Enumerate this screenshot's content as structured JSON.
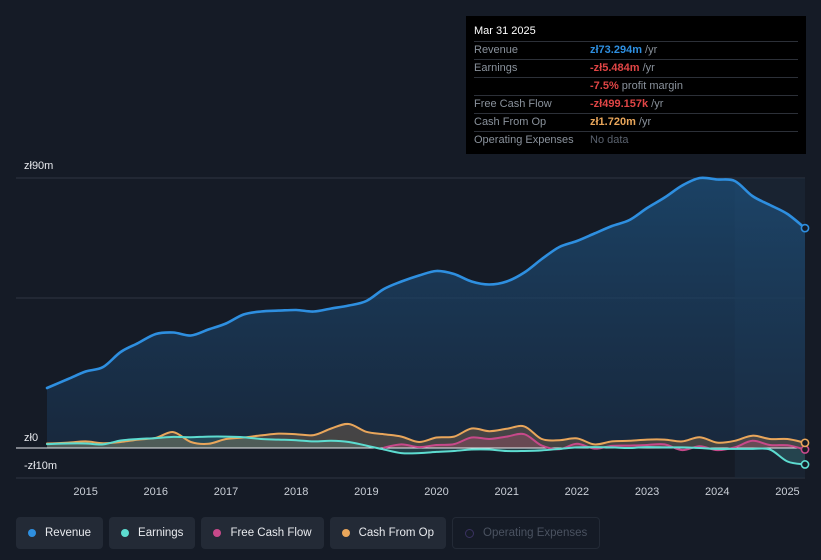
{
  "chart_data": {
    "type": "line",
    "currency": "zł",
    "y_labels": {
      "top": "zł90m",
      "zero": "zł0",
      "bottom": "-zł10m"
    },
    "ylim": [
      -10,
      90
    ],
    "x_ticks": [
      "2015",
      "2016",
      "2017",
      "2018",
      "2019",
      "2020",
      "2021",
      "2022",
      "2023",
      "2024",
      "2025"
    ],
    "x_range": [
      2014.45,
      2025.25
    ],
    "forecast_start": 2024.25,
    "series": [
      {
        "name": "Revenue",
        "color": "#2e8fe0",
        "points": [
          [
            2014.45,
            20
          ],
          [
            2014.75,
            23
          ],
          [
            2015.0,
            25.5
          ],
          [
            2015.25,
            27
          ],
          [
            2015.5,
            32
          ],
          [
            2015.75,
            35
          ],
          [
            2016.0,
            38
          ],
          [
            2016.25,
            38.5
          ],
          [
            2016.5,
            37.5
          ],
          [
            2016.75,
            39.5
          ],
          [
            2017.0,
            41.5
          ],
          [
            2017.25,
            44.5
          ],
          [
            2017.5,
            45.5
          ],
          [
            2017.75,
            45.8
          ],
          [
            2018.0,
            46
          ],
          [
            2018.25,
            45.5
          ],
          [
            2018.5,
            46.5
          ],
          [
            2018.75,
            47.5
          ],
          [
            2019.0,
            49
          ],
          [
            2019.25,
            53
          ],
          [
            2019.5,
            55.5
          ],
          [
            2019.75,
            57.5
          ],
          [
            2020.0,
            59
          ],
          [
            2020.25,
            58
          ],
          [
            2020.5,
            55.5
          ],
          [
            2020.75,
            54.5
          ],
          [
            2021.0,
            55.5
          ],
          [
            2021.25,
            58.5
          ],
          [
            2021.5,
            63
          ],
          [
            2021.75,
            67
          ],
          [
            2022.0,
            69
          ],
          [
            2022.25,
            71.5
          ],
          [
            2022.5,
            74
          ],
          [
            2022.75,
            76
          ],
          [
            2023.0,
            80
          ],
          [
            2023.25,
            83.5
          ],
          [
            2023.5,
            87.5
          ],
          [
            2023.75,
            90
          ],
          [
            2024.0,
            89.5
          ],
          [
            2024.25,
            89
          ],
          [
            2024.5,
            84
          ],
          [
            2024.75,
            81
          ],
          [
            2025.0,
            78
          ],
          [
            2025.25,
            73.294
          ]
        ]
      },
      {
        "name": "Earnings",
        "color": "#5ddcd0",
        "points": [
          [
            2014.45,
            1.3
          ],
          [
            2014.75,
            1.5
          ],
          [
            2015.0,
            1.5
          ],
          [
            2015.25,
            1.2
          ],
          [
            2015.5,
            2.5
          ],
          [
            2015.75,
            3.0
          ],
          [
            2016.0,
            3.3
          ],
          [
            2016.25,
            3.7
          ],
          [
            2016.5,
            3.6
          ],
          [
            2016.75,
            3.8
          ],
          [
            2017.0,
            3.8
          ],
          [
            2017.25,
            3.6
          ],
          [
            2017.5,
            3.0
          ],
          [
            2017.75,
            2.8
          ],
          [
            2018.0,
            2.6
          ],
          [
            2018.25,
            2.2
          ],
          [
            2018.5,
            2.4
          ],
          [
            2018.75,
            2.0
          ],
          [
            2019.0,
            0.8
          ],
          [
            2019.25,
            -0.5
          ],
          [
            2019.5,
            -1.7
          ],
          [
            2019.75,
            -1.7
          ],
          [
            2020.0,
            -1.3
          ],
          [
            2020.25,
            -1.0
          ],
          [
            2020.5,
            -0.5
          ],
          [
            2020.75,
            -0.5
          ],
          [
            2021.0,
            -1.0
          ],
          [
            2021.25,
            -1.0
          ],
          [
            2021.5,
            -0.8
          ],
          [
            2021.75,
            -0.3
          ],
          [
            2022.0,
            0.2
          ],
          [
            2022.25,
            0.3
          ],
          [
            2022.5,
            0.2
          ],
          [
            2022.75,
            0.0
          ],
          [
            2023.0,
            0.3
          ],
          [
            2023.25,
            0.2
          ],
          [
            2023.5,
            0.2
          ],
          [
            2023.75,
            0.0
          ],
          [
            2024.0,
            -0.3
          ],
          [
            2024.25,
            -0.3
          ],
          [
            2024.5,
            -0.3
          ],
          [
            2024.75,
            -0.5
          ],
          [
            2025.0,
            -4.5
          ],
          [
            2025.25,
            -5.484
          ]
        ]
      },
      {
        "name": "Free Cash Flow",
        "color": "#c7498a",
        "points": [
          [
            2019.25,
            0.1
          ],
          [
            2019.5,
            1.2
          ],
          [
            2019.75,
            0.3
          ],
          [
            2020.0,
            1.0
          ],
          [
            2020.25,
            1.3
          ],
          [
            2020.5,
            3.5
          ],
          [
            2020.75,
            3.0
          ],
          [
            2021.0,
            3.8
          ],
          [
            2021.25,
            4.6
          ],
          [
            2021.5,
            0.8
          ],
          [
            2021.75,
            -0.4
          ],
          [
            2022.0,
            1.4
          ],
          [
            2022.25,
            -0.2
          ],
          [
            2022.5,
            0.7
          ],
          [
            2022.75,
            0.8
          ],
          [
            2023.0,
            1.0
          ],
          [
            2023.25,
            1.2
          ],
          [
            2023.5,
            -0.7
          ],
          [
            2023.75,
            0.6
          ],
          [
            2024.0,
            -0.7
          ],
          [
            2024.25,
            0.2
          ],
          [
            2024.5,
            2.4
          ],
          [
            2024.75,
            1.0
          ],
          [
            2025.0,
            0.9
          ],
          [
            2025.25,
            -0.499
          ]
        ]
      },
      {
        "name": "Cash From Op",
        "color": "#e9a65b",
        "points": [
          [
            2014.45,
            1.5
          ],
          [
            2014.75,
            1.8
          ],
          [
            2015.0,
            2.2
          ],
          [
            2015.25,
            1.6
          ],
          [
            2015.5,
            2.0
          ],
          [
            2015.75,
            2.8
          ],
          [
            2016.0,
            3.4
          ],
          [
            2016.25,
            5.3
          ],
          [
            2016.5,
            2.0
          ],
          [
            2016.75,
            1.4
          ],
          [
            2017.0,
            3.0
          ],
          [
            2017.25,
            3.5
          ],
          [
            2017.5,
            4.2
          ],
          [
            2017.75,
            4.8
          ],
          [
            2018.0,
            4.6
          ],
          [
            2018.25,
            4.3
          ],
          [
            2018.5,
            6.5
          ],
          [
            2018.75,
            8.0
          ],
          [
            2019.0,
            5.4
          ],
          [
            2019.25,
            4.6
          ],
          [
            2019.5,
            3.8
          ],
          [
            2019.75,
            2.0
          ],
          [
            2020.0,
            3.5
          ],
          [
            2020.25,
            3.8
          ],
          [
            2020.5,
            6.5
          ],
          [
            2020.75,
            5.6
          ],
          [
            2021.0,
            6.4
          ],
          [
            2021.25,
            7.2
          ],
          [
            2021.5,
            3.0
          ],
          [
            2021.75,
            2.6
          ],
          [
            2022.0,
            3.2
          ],
          [
            2022.25,
            1.2
          ],
          [
            2022.5,
            2.2
          ],
          [
            2022.75,
            2.4
          ],
          [
            2023.0,
            2.8
          ],
          [
            2023.25,
            2.8
          ],
          [
            2023.5,
            2.2
          ],
          [
            2023.75,
            3.6
          ],
          [
            2024.0,
            1.8
          ],
          [
            2024.25,
            2.4
          ],
          [
            2024.5,
            4.1
          ],
          [
            2024.75,
            3.0
          ],
          [
            2025.0,
            3.0
          ],
          [
            2025.25,
            1.72
          ]
        ]
      }
    ]
  },
  "tooltip": {
    "date": "Mar 31 2025",
    "rows": [
      {
        "label": "Revenue",
        "value": "zł73.294m",
        "unit": " /yr",
        "color": "#2e8fe0"
      },
      {
        "label": "Earnings",
        "value": "-zł5.484m",
        "unit": " /yr",
        "color": "#e04545"
      },
      {
        "label": "",
        "value": "-7.5%",
        "unit": " profit margin",
        "color": "#e04545"
      },
      {
        "label": "Free Cash Flow",
        "value": "-zł499.157k",
        "unit": " /yr",
        "color": "#e04545"
      },
      {
        "label": "Cash From Op",
        "value": "zł1.720m",
        "unit": " /yr",
        "color": "#e9a65b"
      },
      {
        "label": "Operating Expenses",
        "value": "No data",
        "unit": "",
        "color": "#5a626e"
      }
    ]
  },
  "legend": [
    {
      "label": "Revenue",
      "color": "#2e8fe0",
      "active": true
    },
    {
      "label": "Earnings",
      "color": "#5ddcd0",
      "active": true
    },
    {
      "label": "Free Cash Flow",
      "color": "#c7498a",
      "active": true
    },
    {
      "label": "Cash From Op",
      "color": "#e9a65b",
      "active": true
    },
    {
      "label": "Operating Expenses",
      "color": "#3a3260",
      "active": false
    }
  ]
}
